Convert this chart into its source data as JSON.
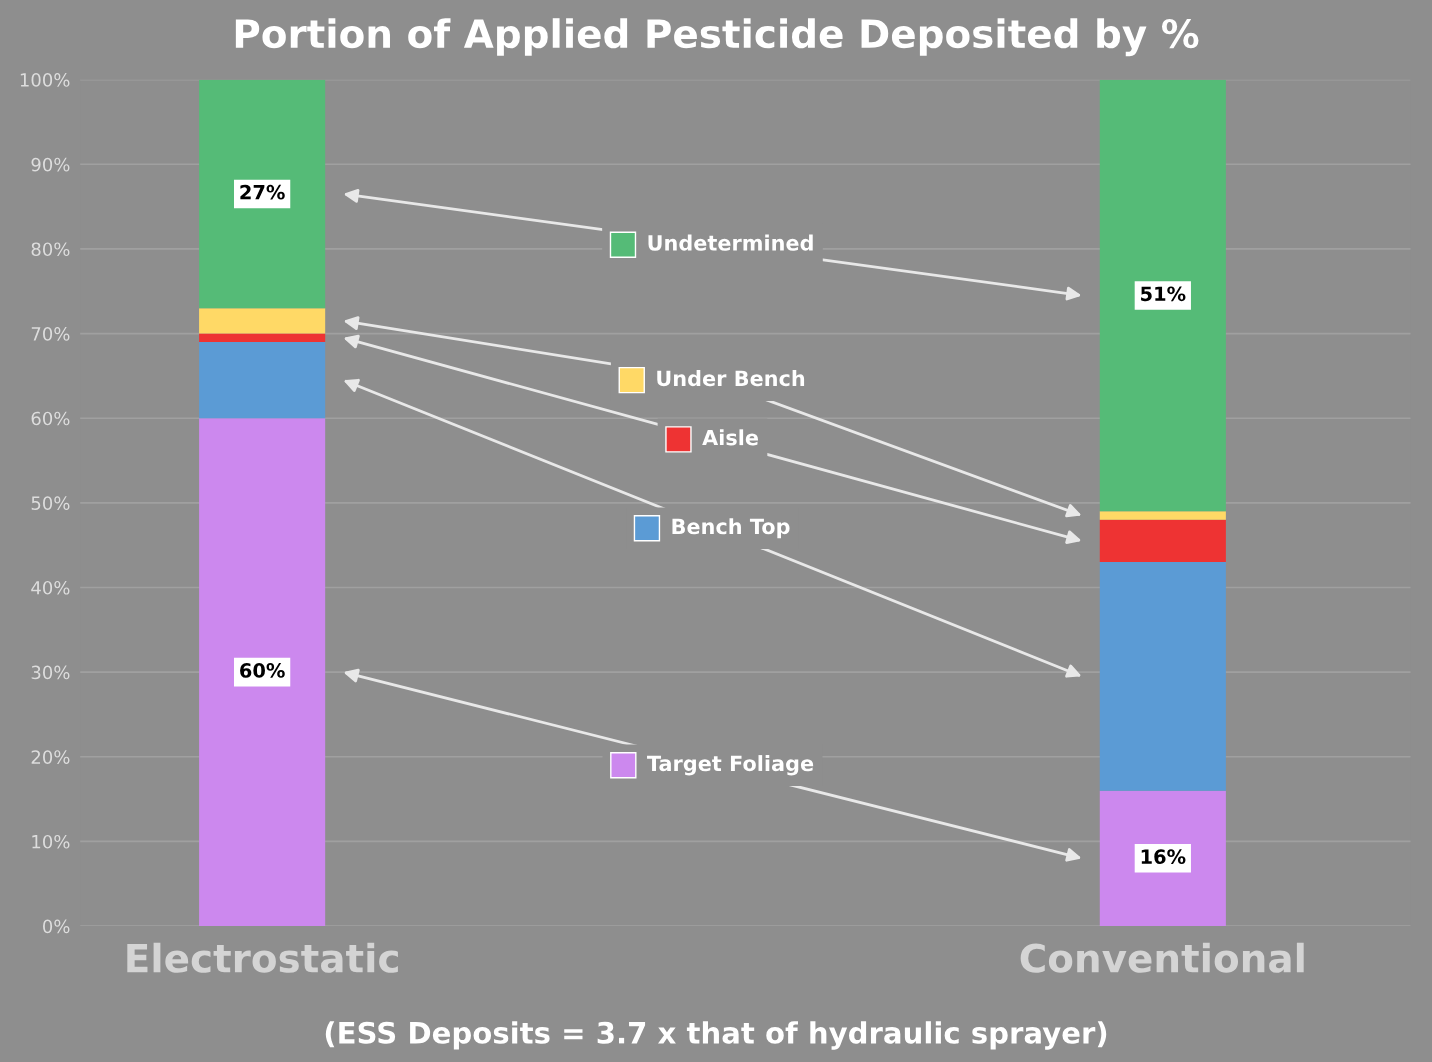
{
  "chart_data": {
    "type": "bar",
    "stacked": true,
    "title": "Portion of Applied Pesticide Deposited by %",
    "categories": [
      "Electrostatic",
      "Conventional"
    ],
    "series": [
      {
        "name": "Target Foliage",
        "color": "#cc88ee",
        "values": [
          60,
          16
        ],
        "value_labels": [
          "60%",
          "16%"
        ]
      },
      {
        "name": "Bench Top",
        "color": "#5b9bd5",
        "values": [
          9,
          27
        ],
        "value_labels": [
          null,
          null
        ]
      },
      {
        "name": "Aisle",
        "color": "#ee3333",
        "values": [
          1,
          5
        ],
        "value_labels": [
          null,
          null
        ]
      },
      {
        "name": "Under Bench",
        "color": "#ffd966",
        "values": [
          3,
          1
        ],
        "value_labels": [
          null,
          null
        ]
      },
      {
        "name": "Undetermined",
        "color": "#55bb77",
        "values": [
          27,
          51
        ],
        "value_labels": [
          "27%",
          "51%"
        ]
      }
    ],
    "ylim": [
      0,
      100
    ],
    "yticks": [
      {
        "value": 0,
        "label": "0%"
      },
      {
        "value": 10,
        "label": "10%"
      },
      {
        "value": 20,
        "label": "20%"
      },
      {
        "value": 30,
        "label": "30%"
      },
      {
        "value": 40,
        "label": "40%"
      },
      {
        "value": 50,
        "label": "50%"
      },
      {
        "value": 60,
        "label": "60%"
      },
      {
        "value": 70,
        "label": "70%"
      },
      {
        "value": 80,
        "label": "80%"
      },
      {
        "value": 90,
        "label": "90%"
      },
      {
        "value": 100,
        "label": "100%"
      }
    ],
    "grid": "y",
    "legend": "center",
    "annotations": [
      "(ESS Deposits = 3.7 x that of hydraulic sprayer)"
    ]
  }
}
